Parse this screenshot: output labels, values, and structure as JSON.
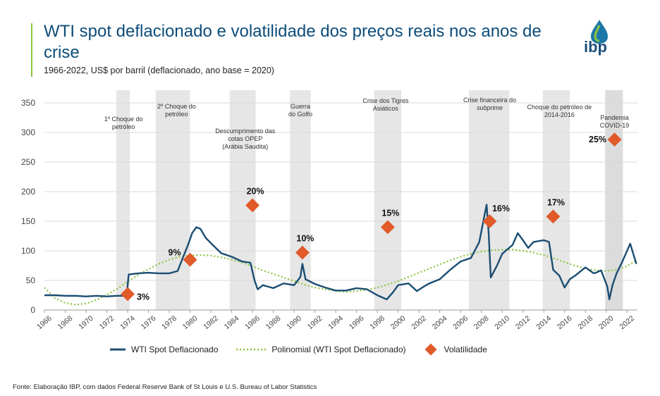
{
  "header": {
    "title": "WTI spot deflacionado e volatilidade dos preços reais nos anos de crise",
    "subtitle": "1966-2022, US$ por barril (deflacionado, ano base = 2020)",
    "logo_text": "ibp"
  },
  "source": "Fonte: Elaboração IBP, com dados Federal Reserve Bank of St Louis e U.S. Bureau of Labor Statistics",
  "colors": {
    "title": "#0d4d7a",
    "accent": "#8cc43f",
    "line": "#1a4d72",
    "poly": "#8cc43f",
    "marker": "#e05a2a",
    "shade": "#e6e6e6",
    "shade_dark": "#dcdcdc"
  },
  "chart_data": {
    "type": "line",
    "ylim": [
      0,
      350
    ],
    "xlim": [
      1966,
      2023
    ],
    "yticks": [
      0,
      50,
      100,
      150,
      200,
      250,
      300,
      350
    ],
    "xticks": [
      "1966",
      "1968",
      "1970",
      "1972",
      "1974",
      "1976",
      "1978",
      "1980",
      "1982",
      "1984",
      "1986",
      "1988",
      "1990",
      "1992",
      "1994",
      "1996",
      "1998",
      "2000",
      "2002",
      "2004",
      "2006",
      "2008",
      "2010",
      "2012",
      "2014",
      "2016",
      "2018",
      "2020",
      "2022"
    ],
    "grid": true,
    "legend_position": "bottom",
    "series": [
      {
        "name": "WTI Spot Deflacionado",
        "points": [
          [
            1966,
            25
          ],
          [
            1967,
            25
          ],
          [
            1968,
            24
          ],
          [
            1969,
            24
          ],
          [
            1970,
            23
          ],
          [
            1971,
            24
          ],
          [
            1972,
            23
          ],
          [
            1973,
            24
          ],
          [
            1973.9,
            24
          ],
          [
            1974.1,
            60
          ],
          [
            1975,
            62
          ],
          [
            1976,
            63
          ],
          [
            1977,
            62
          ],
          [
            1978,
            62
          ],
          [
            1978.8,
            66
          ],
          [
            1979.3,
            88
          ],
          [
            1979.8,
            110
          ],
          [
            1980.2,
            130
          ],
          [
            1980.6,
            140
          ],
          [
            1981,
            137
          ],
          [
            1981.5,
            122
          ],
          [
            1982,
            113
          ],
          [
            1983,
            96
          ],
          [
            1984,
            90
          ],
          [
            1985,
            82
          ],
          [
            1985.8,
            80
          ],
          [
            1986.2,
            50
          ],
          [
            1986.5,
            35
          ],
          [
            1987,
            42
          ],
          [
            1988,
            37
          ],
          [
            1989,
            45
          ],
          [
            1990,
            42
          ],
          [
            1990.6,
            56
          ],
          [
            1990.8,
            78
          ],
          [
            1991.1,
            52
          ],
          [
            1992,
            44
          ],
          [
            1993,
            38
          ],
          [
            1994,
            33
          ],
          [
            1995,
            33
          ],
          [
            1996,
            37
          ],
          [
            1997,
            35
          ],
          [
            1998,
            25
          ],
          [
            1998.9,
            18
          ],
          [
            1999.5,
            30
          ],
          [
            2000,
            42
          ],
          [
            2001,
            45
          ],
          [
            2001.8,
            32
          ],
          [
            2002.5,
            40
          ],
          [
            2003,
            45
          ],
          [
            2004,
            52
          ],
          [
            2005,
            68
          ],
          [
            2006,
            82
          ],
          [
            2007,
            88
          ],
          [
            2007.8,
            115
          ],
          [
            2008.3,
            160
          ],
          [
            2008.5,
            178
          ],
          [
            2008.7,
            130
          ],
          [
            2008.9,
            55
          ],
          [
            2009.5,
            75
          ],
          [
            2010,
            95
          ],
          [
            2011,
            110
          ],
          [
            2011.5,
            130
          ],
          [
            2012,
            118
          ],
          [
            2012.5,
            105
          ],
          [
            2013,
            115
          ],
          [
            2014,
            118
          ],
          [
            2014.5,
            115
          ],
          [
            2014.9,
            68
          ],
          [
            2015.5,
            58
          ],
          [
            2016,
            38
          ],
          [
            2016.5,
            52
          ],
          [
            2017,
            58
          ],
          [
            2018,
            72
          ],
          [
            2018.8,
            62
          ],
          [
            2019,
            63
          ],
          [
            2019.5,
            67
          ],
          [
            2020.1,
            40
          ],
          [
            2020.3,
            18
          ],
          [
            2020.6,
            42
          ],
          [
            2021,
            62
          ],
          [
            2021.5,
            80
          ],
          [
            2022.3,
            112
          ],
          [
            2022.6,
            95
          ],
          [
            2022.9,
            78
          ]
        ]
      },
      {
        "name": "Polinomial (WTI Spot Deflacionado)",
        "points": [
          [
            1966,
            38
          ],
          [
            1967,
            20
          ],
          [
            1968,
            12
          ],
          [
            1969,
            9
          ],
          [
            1970,
            11
          ],
          [
            1971,
            17
          ],
          [
            1972,
            26
          ],
          [
            1973,
            36
          ],
          [
            1974,
            48
          ],
          [
            1975,
            59
          ],
          [
            1976,
            69
          ],
          [
            1977,
            78
          ],
          [
            1978,
            85
          ],
          [
            1979,
            90
          ],
          [
            1980,
            92
          ],
          [
            1981,
            93
          ],
          [
            1982,
            92
          ],
          [
            1983,
            89
          ],
          [
            1984,
            85
          ],
          [
            1985,
            80
          ],
          [
            1986,
            74
          ],
          [
            1987,
            67
          ],
          [
            1988,
            61
          ],
          [
            1989,
            55
          ],
          [
            1990,
            49
          ],
          [
            1991,
            43
          ],
          [
            1992,
            38
          ],
          [
            1993,
            35
          ],
          [
            1994,
            32
          ],
          [
            1995,
            31
          ],
          [
            1996,
            32
          ],
          [
            1997,
            34
          ],
          [
            1998,
            38
          ],
          [
            1999,
            43
          ],
          [
            2000,
            49
          ],
          [
            2001,
            56
          ],
          [
            2002,
            63
          ],
          [
            2003,
            70
          ],
          [
            2004,
            77
          ],
          [
            2005,
            84
          ],
          [
            2006,
            90
          ],
          [
            2007,
            95
          ],
          [
            2008,
            99
          ],
          [
            2009,
            101
          ],
          [
            2010,
            102
          ],
          [
            2011,
            102
          ],
          [
            2012,
            100
          ],
          [
            2013,
            97
          ],
          [
            2014,
            93
          ],
          [
            2015,
            87
          ],
          [
            2016,
            81
          ],
          [
            2017,
            75
          ],
          [
            2018,
            70
          ],
          [
            2019,
            67
          ],
          [
            2020,
            66
          ],
          [
            2021,
            68
          ],
          [
            2022,
            74
          ],
          [
            2023,
            85
          ]
        ]
      }
    ],
    "volatility": {
      "name": "Volatilidade",
      "points": [
        {
          "x": 1974,
          "y": 27,
          "label": "3%"
        },
        {
          "x": 1980,
          "y": 85,
          "label": "9%"
        },
        {
          "x": 1986,
          "y": 177,
          "label": "20%"
        },
        {
          "x": 1990.8,
          "y": 97,
          "label": "10%"
        },
        {
          "x": 1999,
          "y": 140,
          "label": "15%"
        },
        {
          "x": 2008.8,
          "y": 150,
          "label": "16%"
        },
        {
          "x": 2014.9,
          "y": 158,
          "label": "17%"
        },
        {
          "x": 2020.8,
          "y": 288,
          "label": "25%"
        }
      ]
    },
    "crises": [
      {
        "label": "1º Choque do petróleo",
        "lines": [
          "1º Choque do",
          "petróleo"
        ],
        "x0": 1972.9,
        "x1": 1974.2,
        "text_x": 1973.6
      },
      {
        "label": "2º Choque do petróleo",
        "lines": [
          "2º Choque do",
          "petróleo"
        ],
        "x0": 1976.7,
        "x1": 1980,
        "text_x": 1978.7
      },
      {
        "label": "Descumprimento das cotas OPEP (Arábia Saudita)",
        "lines": [
          "Descumprimento das",
          "cotas OPEP",
          "(Arábia Saudita)"
        ],
        "x0": 1983.8,
        "x1": 1986.3,
        "text_x": 1985.3
      },
      {
        "label": "Guerra do Golfo",
        "lines": [
          "Guerra",
          "do Golfo"
        ],
        "x0": 1989.6,
        "x1": 1991.6,
        "text_x": 1990.6
      },
      {
        "label": "Crise dos Tigres Asiáticos",
        "lines": [
          "Crise dos Tigres",
          "Asiáticos"
        ],
        "x0": 1997.7,
        "x1": 2000.3,
        "text_x": 1998.8
      },
      {
        "label": "Crise financeira do subprime",
        "lines": [
          "Crise financeira do",
          "subprime"
        ],
        "x0": 2006.8,
        "x1": 2010.7,
        "text_x": 2008.8
      },
      {
        "label": "Choque do petróleo de 2014-2016",
        "lines": [
          "Choque do petróleo de",
          "2014-2016"
        ],
        "x0": 2013.9,
        "x1": 2016.5,
        "text_x": 2015.5
      },
      {
        "label": "Pandemia COVID-19",
        "lines": [
          "Pandemia",
          "COVID-19"
        ],
        "x0": 2019.9,
        "x1": 2021.6,
        "text_x": 2020.8
      }
    ],
    "legend": {
      "line": "WTI Spot Deflacionado",
      "poly": "Polinomial (WTI Spot Deflacionado)",
      "vol": "Volatilidade"
    }
  }
}
